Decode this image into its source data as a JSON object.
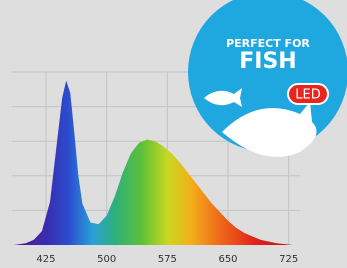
{
  "chart_data": {
    "type": "area",
    "x": [
      385,
      400,
      410,
      420,
      430,
      440,
      445,
      450,
      455,
      460,
      465,
      470,
      480,
      490,
      500,
      510,
      520,
      530,
      540,
      550,
      560,
      570,
      580,
      590,
      600,
      610,
      620,
      630,
      640,
      650,
      660,
      670,
      680,
      690,
      700,
      710,
      720,
      730
    ],
    "values": [
      0,
      1,
      3,
      8,
      25,
      65,
      85,
      95,
      88,
      65,
      40,
      24,
      13,
      12,
      17,
      28,
      42,
      53,
      59,
      61,
      60,
      57,
      53,
      48,
      42,
      36,
      30,
      24,
      19,
      14,
      10,
      7,
      5,
      3,
      2,
      1,
      0.5,
      0
    ],
    "xlim": [
      383,
      739
    ],
    "ylim": [
      0,
      100
    ],
    "xticks": [
      425,
      500,
      575,
      650,
      725
    ],
    "ygrid": [
      20,
      40,
      60,
      80,
      100
    ],
    "grid": true,
    "annotations": [
      "PERFECT FOR",
      "FISH",
      "LED"
    ]
  }
}
